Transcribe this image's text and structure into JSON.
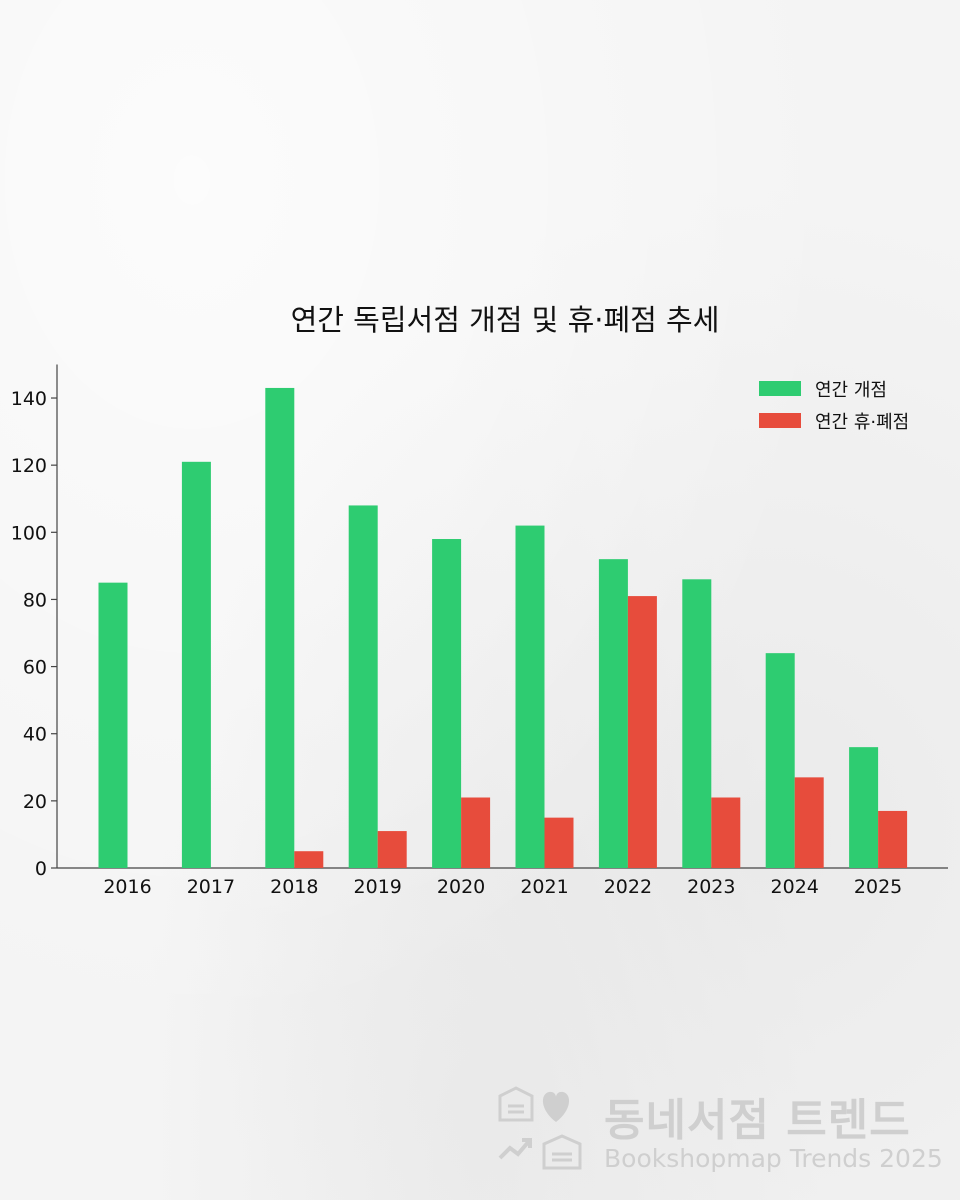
{
  "chart_data": {
    "type": "bar",
    "title": "연간 독립서점 개점 및 휴·폐점 추세",
    "categories": [
      "2016",
      "2017",
      "2018",
      "2019",
      "2020",
      "2021",
      "2022",
      "2023",
      "2024",
      "2025"
    ],
    "series": [
      {
        "name": "연간 개점",
        "color": "#2ecc71",
        "values": [
          85,
          121,
          143,
          108,
          98,
          102,
          92,
          86,
          64,
          36
        ]
      },
      {
        "name": "연간 휴·폐점",
        "color": "#e74c3c",
        "values": [
          0,
          0,
          5,
          11,
          21,
          15,
          81,
          21,
          27,
          17
        ]
      }
    ],
    "yticks": [
      0,
      20,
      40,
      60,
      80,
      100,
      120,
      140
    ],
    "ylim": [
      0,
      150
    ],
    "xlabel": "",
    "ylabel": "",
    "grid": false,
    "legend_position": "top-right"
  },
  "watermark": {
    "title": "동네서점 트렌드",
    "subtitle": "Bookshopmap Trends 2025",
    "icons": [
      "bookshop-icon",
      "heart-icon",
      "trend-arrow-icon",
      "bookshop-icon"
    ]
  }
}
